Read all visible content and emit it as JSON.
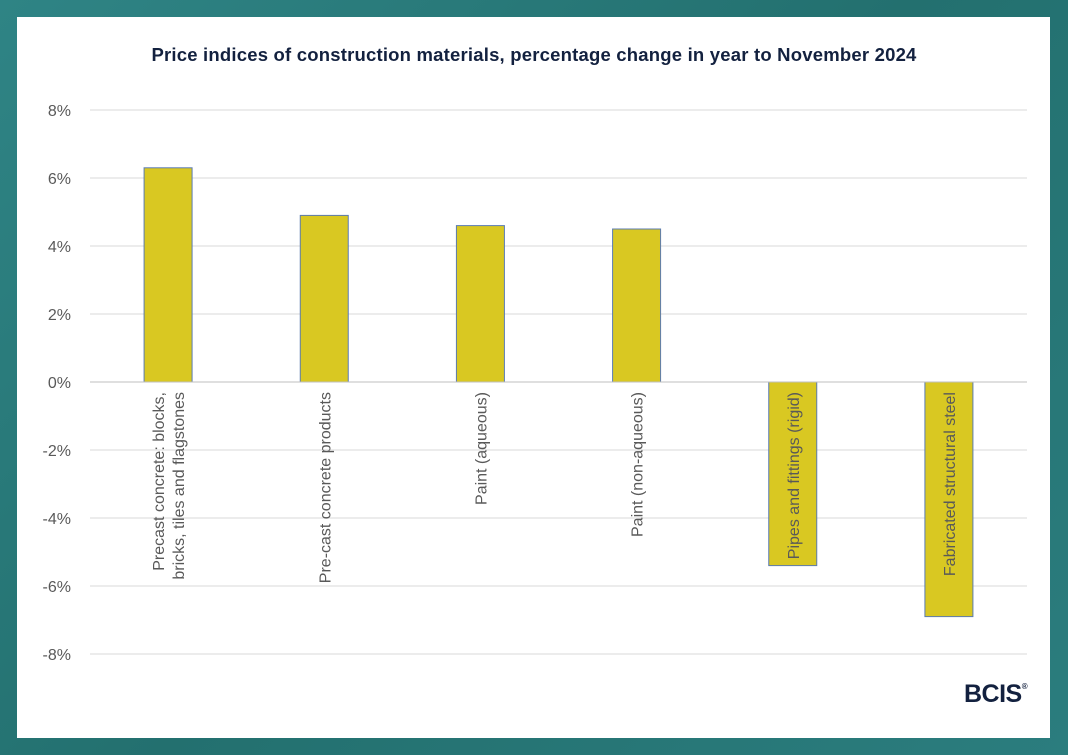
{
  "chart_data": {
    "type": "bar",
    "title": "Price indices of construction materials, percentage change in year to November 2024",
    "categories": [
      [
        "Precast concrete: blocks,",
        "bricks, tiles and flagstones"
      ],
      [
        "Pre-cast concrete products"
      ],
      [
        "Paint (aqueous)"
      ],
      [
        "Paint (non-aqueous)"
      ],
      [
        "Pipes and fittings (rigid)"
      ],
      [
        "Fabricated structural steel"
      ]
    ],
    "values": [
      6.3,
      4.9,
      4.6,
      4.5,
      -5.4,
      -6.9
    ],
    "ylim": [
      -8,
      8
    ],
    "yticks": [
      8,
      6,
      4,
      2,
      0,
      -2,
      -4,
      -6,
      -8
    ],
    "ytick_labels": [
      "8%",
      "6%",
      "4%",
      "2%",
      "0%",
      "-2%",
      "-4%",
      "-6%",
      "-8%"
    ],
    "xlabel": "",
    "ylabel": "",
    "grid": true,
    "colors": {
      "bar": "#d9c822",
      "bar_edge": "#5b7bb0",
      "grid": "#d9d9d9",
      "text": "#595959",
      "title": "#13213f"
    }
  },
  "brand": {
    "logo": "BCIS",
    "registered": "®"
  }
}
